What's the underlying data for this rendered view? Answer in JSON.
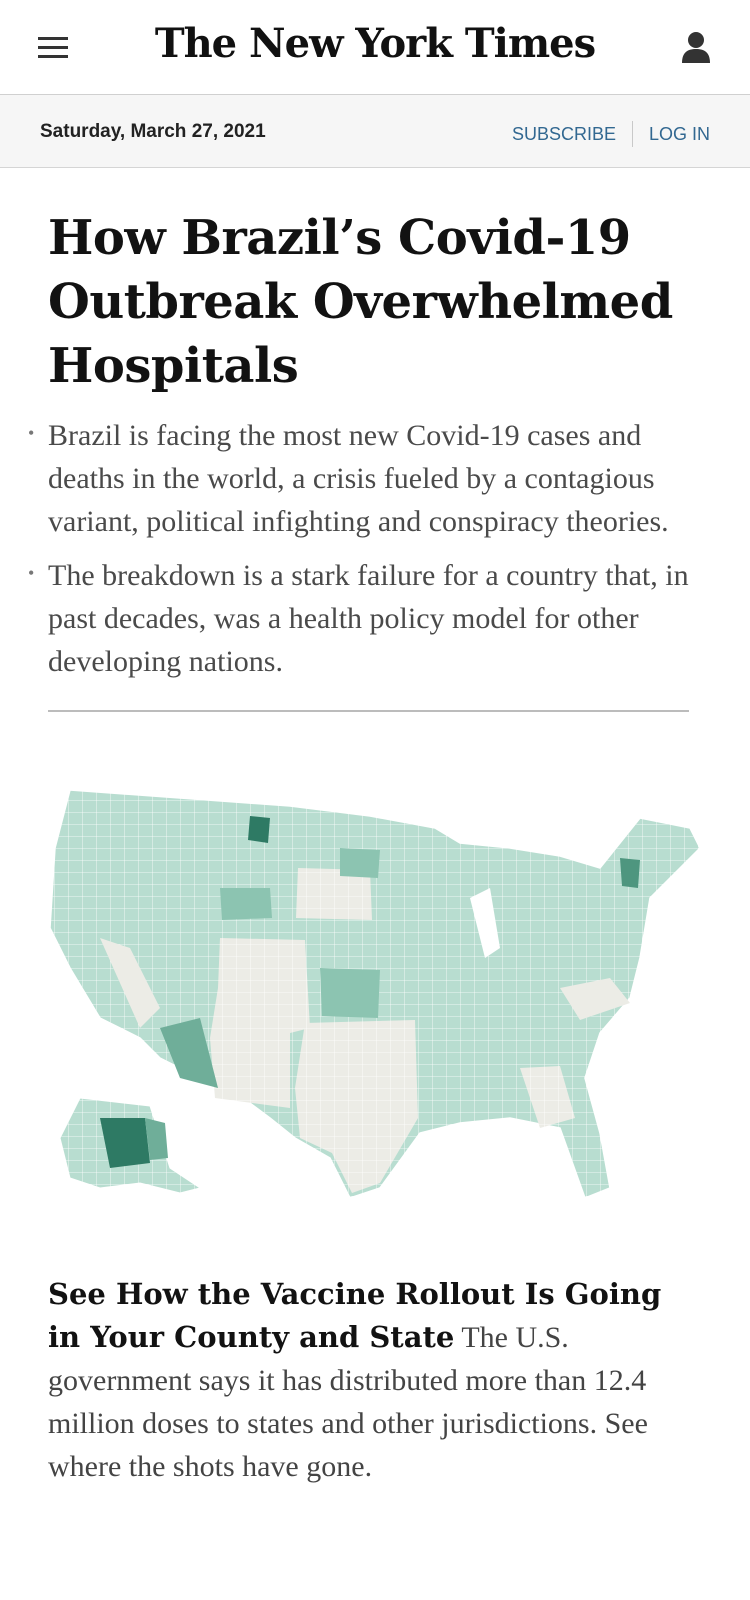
{
  "header": {
    "logo_text": "The New York Times",
    "menu_icon": "hamburger-menu-icon",
    "user_icon": "user-account-icon"
  },
  "datebar": {
    "date": "Saturday, March 27, 2021",
    "subscribe_label": "SUBSCRIBE",
    "login_label": "LOG IN",
    "link_color": "#326891"
  },
  "article": {
    "headline": "How Brazil’s Covid-19 Outbreak Overwhelmed Hospitals",
    "summary": [
      "Brazil is facing the most new Covid-19 cases and deaths in the world, a crisis fueled by a contagious variant, political infighting and conspiracy theories.",
      "The breakdown is a stark failure for a country that, in past decades, was a health policy model for other developing nations."
    ]
  },
  "promo": {
    "headline": "See How the Vaccine Rollout Is Going in Your County and State",
    "summary": "The U.S. government says it has distributed more than 12.4 million doses to states and other jurisdictions. See where the shots have gone.",
    "map_colors": {
      "light": "#cfe6de",
      "mid": "#9fcfbf",
      "dark": "#5fa58f",
      "darkest": "#2e7a64",
      "no_data": "#ecece6"
    }
  }
}
